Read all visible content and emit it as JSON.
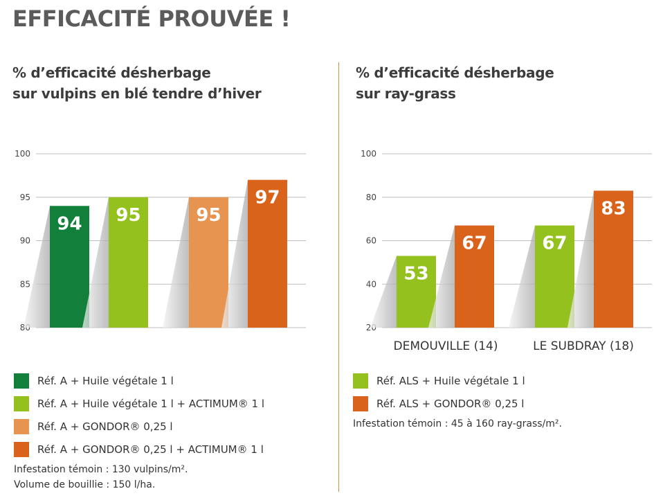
{
  "title": "EFFICACITÉ PROUVÉE !",
  "colors": {
    "dark_green": "#12803a",
    "light_green": "#95c11f",
    "light_orange": "#e6944f",
    "orange": "#d9631a",
    "grid": "#bdbdbd",
    "divider": "#d98a4a"
  },
  "chart_data": [
    {
      "type": "bar",
      "title_lines": [
        "% d’efficacité désherbage",
        "sur vulpins en blé tendre d’hiver"
      ],
      "ylim": [
        80,
        100
      ],
      "yticks": [
        80,
        85,
        90,
        95,
        100
      ],
      "grid": true,
      "categories": [],
      "bars": [
        {
          "series": "Réf. A + Huile végétale 1 l",
          "value": 94,
          "label": "94",
          "color": "#12803a"
        },
        {
          "series": "Réf. A + Huile végétale 1 l + ACTIMUM® 1 l",
          "value": 95,
          "label": "95",
          "color": "#95c11f"
        },
        {
          "series": "Réf. A + GONDOR® 0,25 l",
          "value": 95,
          "label": "95",
          "color": "#e6944f"
        },
        {
          "series": "Réf. A + GONDOR® 0,25 l + ACTIMUM® 1 l",
          "value": 97,
          "label": "97",
          "color": "#d9631a"
        }
      ],
      "legend": [
        {
          "label": "Réf. A + Huile végétale 1 l",
          "color": "#12803a"
        },
        {
          "label": "Réf. A + Huile végétale 1 l + ACTIMUM® 1 l",
          "color": "#95c11f"
        },
        {
          "label": "Réf. A + GONDOR® 0,25 l",
          "color": "#e6944f"
        },
        {
          "label": "Réf. A + GONDOR® 0,25 l + ACTIMUM® 1 l",
          "color": "#d9631a"
        }
      ],
      "notes": [
        "Infestation témoin : 130 vulpins/m².",
        "Volume de bouillie : 150 l/ha."
      ]
    },
    {
      "type": "bar",
      "title_lines": [
        "% d’efficacité désherbage",
        "sur ray-grass"
      ],
      "ylim": [
        20,
        100
      ],
      "yticks": [
        20,
        40,
        60,
        80,
        100
      ],
      "grid": true,
      "categories": [
        "DEMOUVILLE (14)",
        "LE SUBDRAY (18)"
      ],
      "bars": [
        {
          "series": "Réf. ALS + Huile végétale 1 l",
          "category": "DEMOUVILLE (14)",
          "value": 53,
          "label": "53",
          "color": "#95c11f"
        },
        {
          "series": "Réf. ALS + GONDOR® 0,25 l",
          "category": "DEMOUVILLE (14)",
          "value": 67,
          "label": "67",
          "color": "#d9631a"
        },
        {
          "series": "Réf. ALS + Huile végétale 1 l",
          "category": "LE SUBDRAY (18)",
          "value": 67,
          "label": "67",
          "color": "#95c11f"
        },
        {
          "series": "Réf. ALS + GONDOR® 0,25 l",
          "category": "LE SUBDRAY (18)",
          "value": 83,
          "label": "83",
          "color": "#d9631a"
        }
      ],
      "legend": [
        {
          "label": "Réf. ALS + Huile végétale 1 l",
          "color": "#95c11f"
        },
        {
          "label": "Réf. ALS + GONDOR® 0,25 l",
          "color": "#d9631a"
        }
      ],
      "notes": [
        "Infestation témoin : 45 à 160 ray-grass/m²."
      ]
    }
  ]
}
